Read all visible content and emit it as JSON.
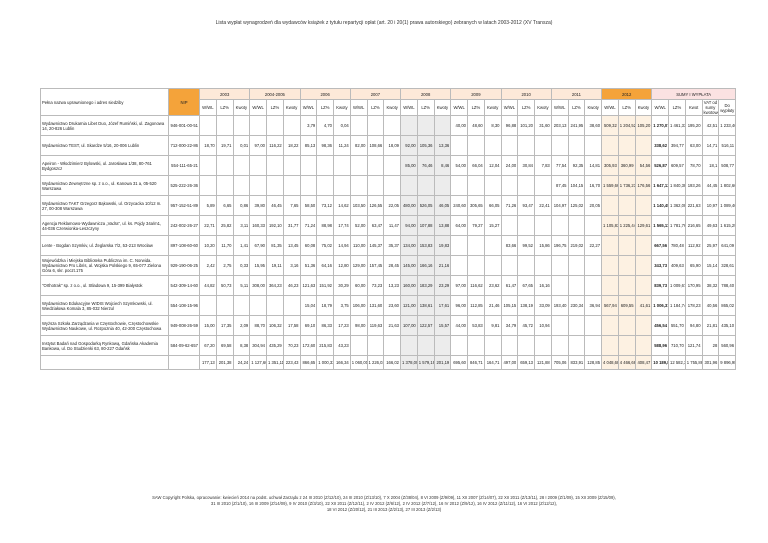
{
  "title": "Lista wypłat wynagrodzeń dla wydawców książek z tytułu repartycji opłat (art. 20 i 20(1) prawa autorskiego) zebranych w latach 2003-2012 (XV Transza)",
  "table": {
    "header": {
      "name": "Pełna nazwa uprawnionego i adres siedziby",
      "nip": "NIP",
      "groups": [
        "2003",
        "2004-2005",
        "2006",
        "2007",
        "2008",
        "2009",
        "2010",
        "2011",
        "2012"
      ],
      "sums": "SUMY I WYPŁATA",
      "sub": [
        "W/WL",
        "LZ%",
        "Kwoty"
      ],
      "sum_sub": [
        "W/WL",
        "LZ%",
        "Kwot",
        "VAT od sumy kwotowej",
        "Do wypłaty"
      ]
    },
    "rows": [
      {
        "name": "Wydawnictwo Drukarnia Libet Duo, Józef Rumiński, ul. Zagonowa 14, 20-826 Lublin",
        "nip": "946-001-00-51",
        "cells": [
          null,
          null,
          null,
          null,
          null,
          null,
          "3,79",
          "4,70",
          "0,04",
          null,
          null,
          null,
          null,
          null,
          null,
          "40,00",
          "48,60",
          "8,30",
          "96,88",
          "101,20",
          "31,60",
          "203,13",
          "241,95",
          "38,60",
          "509,32",
          "1 204,52",
          "105,20",
          "1 270,07",
          "1 461,33",
          "195,20",
          "42,51",
          "1 233,46"
        ]
      },
      {
        "name": "Wydawnictwo TEST, ul. Skardze 5/16, 20-006 Lublin",
        "nip": "712-000-22-86",
        "cells": [
          "18,70",
          "19,71",
          "0,01",
          "97,00",
          "116,22",
          "18,22",
          "85,13",
          "98,36",
          "11,24",
          "82,00",
          "108,66",
          "18,09",
          "92,00",
          "105,36",
          "13,36",
          null,
          null,
          null,
          null,
          null,
          null,
          null,
          null,
          null,
          null,
          null,
          null,
          "338,62",
          "394,77",
          "63,00",
          "14,71",
          "516,11"
        ]
      },
      {
        "name": "Apeiron - Włodzimierz Bylowski, ul. Jarosława 1/38, 80-761 Bydgoszcz",
        "nip": "554-111-65-21",
        "cells": [
          null,
          null,
          null,
          null,
          null,
          null,
          null,
          null,
          null,
          null,
          null,
          null,
          "85,00",
          "76,46",
          "8,46",
          "54,00",
          "66,04",
          "12,04",
          "24,00",
          "30,84",
          "7,83",
          "77,54",
          "92,35",
          "14,81",
          "305,93",
          "360,99",
          "54,56",
          "526,87",
          "609,57",
          "78,70",
          "18,1",
          "508,77"
        ]
      },
      {
        "name": "Wydawnictwo Zewnętrzne sp. z o.o., ul. Kanowa 31 a, 05-520 Warszawa",
        "nip": "525-222-26-36",
        "cells": [
          null,
          null,
          null,
          null,
          null,
          null,
          null,
          null,
          null,
          null,
          null,
          null,
          null,
          null,
          null,
          null,
          null,
          null,
          null,
          null,
          null,
          "87,45",
          "104,15",
          "16,70",
          "1 559,66",
          "1 736,23",
          "176,56",
          "1 647,13",
          "1 840,38",
          "193,26",
          "44,45",
          "1 802,66"
        ]
      },
      {
        "name": "Wydawnictwo TAKT Grzegorz Bąkowski, ul. Orzycacka 10/12 m. 27, 00-308 Warszawa",
        "nip": "957-152-51-89",
        "cells": [
          "5,89",
          "6,65",
          "0,86",
          "39,80",
          "46,45",
          "7,65",
          "58,50",
          "73,12",
          "14,62",
          "103,50",
          "126,55",
          "22,05",
          "480,00",
          "526,05",
          "46,05",
          "240,60",
          "305,65",
          "66,05",
          "71,26",
          "93,47",
          "22,41",
          "104,97",
          "125,02",
          "20,05",
          null,
          null,
          null,
          "1 140,45",
          "1 362,08",
          "221,63",
          "10,97",
          "1 089,46"
        ]
      },
      {
        "name": "Agencja Reklamowo-Wydawnicza „Vadra\", ul. ks. Pojdy 34a/m1, 44-036 Czerwionka-Leszczyny",
        "nip": "242-002-26-27",
        "cells": [
          "22,71",
          "25,82",
          "3,11",
          "160,33",
          "192,10",
          "31,77",
          "71,24",
          "88,98",
          "17,74",
          "52,00",
          "63,47",
          "11,47",
          "94,00",
          "107,88",
          "13,88",
          "64,00",
          "79,27",
          "15,27",
          null,
          null,
          null,
          null,
          null,
          null,
          "1 105,83",
          "1 225,44",
          "129,61",
          "1 565,11",
          "1 781,76",
          "216,65",
          "49,63",
          "1 615,29"
        ]
      },
      {
        "name": "Lente - Bogdan Szymkiv, ul. Żeglarska 7/2, 53-213 Wrocław",
        "nip": "897-108-60-60",
        "cells": [
          "10,20",
          "11,70",
          "1,41",
          "67,90",
          "81,35",
          "13,45",
          "60,08",
          "75,02",
          "14,94",
          "110,00",
          "145,37",
          "35,37",
          "134,00",
          "153,83",
          "19,83",
          null,
          null,
          null,
          "83,66",
          "99,52",
          "15,86",
          "196,75",
          "219,02",
          "22,27",
          null,
          null,
          null,
          "667,56",
          "780,48",
          "112,92",
          "25,97",
          "641,09"
        ]
      },
      {
        "name": "Wojewódzka i Miejska Biblioteka Publiczna im. C. Norwida. Wydawnictwo Pro Libris, al. Wojska Polskiego 9, 65-077 Zielona Góra 6, skr. poczt.175",
        "nip": "929-190-06-25",
        "cells": [
          "2,42",
          "2,75",
          "0,33",
          "15,95",
          "19,11",
          "3,16",
          "51,36",
          "64,16",
          "12,80",
          "129,00",
          "157,45",
          "28,45",
          "145,00",
          "166,16",
          "21,16",
          null,
          null,
          null,
          null,
          null,
          null,
          null,
          null,
          null,
          null,
          null,
          null,
          "343,73",
          "409,63",
          "65,90",
          "15,14",
          "328,61"
        ]
      },
      {
        "name": "\"Orthotrak\" sp. z o.o., ul. Stładowa 9, 15-399 Białystok",
        "nip": "542-309-14-60",
        "cells": [
          "44,82",
          "50,73",
          "5,11",
          "308,00",
          "364,23",
          "46,23",
          "121,63",
          "151,92",
          "30,29",
          "60,00",
          "73,23",
          "13,23",
          "160,00",
          "183,29",
          "23,29",
          "97,00",
          "116,62",
          "23,62",
          "61,47",
          "67,65",
          "16,16",
          null,
          null,
          null,
          null,
          null,
          null,
          "839,73",
          "1 009,67",
          "170,95",
          "38,32",
          "788,40"
        ]
      },
      {
        "name": "Wydawnictwo Edukacyjne WIDIS Wojciech Szymkowski, ul. Wiedziałowa Komala 3, 85-032 Nierzul",
        "nip": "554-108-15-96",
        "cells": [
          null,
          null,
          null,
          null,
          null,
          null,
          "15,04",
          "18,79",
          "3,75",
          "106,00",
          "131,60",
          "23,60",
          "121,00",
          "138,61",
          "17,61",
          "96,00",
          "112,85",
          "21,46",
          "105,15",
          "138,19",
          "33,09",
          "193,40",
          "230,34",
          "36,94",
          "567,94",
          "609,55",
          "41,61",
          "1 006,31",
          "1 184,74",
          "178,23",
          "40,56",
          "865,02"
        ]
      },
      {
        "name": "Wyższa Szkoła Zarządzania w Częstochowie, Częstochowskie Wydawnictwo Naukowe, ul. Rozpoznia 40, 42-200 Częstochowa",
        "nip": "949-008-26-59",
        "cells": [
          "15,00",
          "17,35",
          "2,09",
          "88,70",
          "106,32",
          "17,58",
          "69,10",
          "86,33",
          "17,23",
          "98,00",
          "119,63",
          "21,63",
          "107,00",
          "122,57",
          "15,57",
          "44,00",
          "53,83",
          "9,81",
          "34,79",
          "45,72",
          "10,94",
          null,
          null,
          null,
          null,
          null,
          null,
          "456,54",
          "551,70",
          "94,80",
          "21,81",
          "435,10"
        ]
      },
      {
        "name": "Instytut Badań nad Gospodarką Rynkową, Gdańska Akademia Bankowa, ul. Do Studzienki 63, 80-227 Gdańsk",
        "nip": "584-09-62-657",
        "cells": [
          "67,20",
          "69,58",
          "8,38",
          "304,94",
          "435,29",
          "70,23",
          "172,60",
          "215,83",
          "43,23",
          null,
          null,
          null,
          null,
          null,
          null,
          null,
          null,
          null,
          null,
          null,
          null,
          null,
          null,
          null,
          null,
          null,
          null,
          "588,96",
          "710,70",
          "121,74",
          "28",
          "560,96"
        ]
      }
    ],
    "totals": [
      "177,13",
      "201,38",
      "24,24",
      "1 127,60",
      "1 351,11",
      "223,43",
      "866,65",
      "1 000,33",
      "166,34",
      "1 060,00",
      "1 226,02",
      "166,02",
      "1 378,00",
      "1 579,19",
      "201,19",
      "695,60",
      "846,71",
      "164,71",
      "497,00",
      "659,13",
      "121,88",
      "705,06",
      "833,91",
      "128,85",
      "4 048,68",
      "4 466,68",
      "408,47",
      "10 189,89",
      "12 582,36",
      "1 755,86",
      "301,96",
      "9 896,98"
    ]
  },
  "footer": [
    "SAW Copyright Polska, opracowanie: kwiecień 2014 na podst. uchwał Zarządu z 24 III 2010 (Z/12/10), 24 III 2010 (Z/13/10), 7 X 2004 (Z/38/04), 8 VI 2009 (Z/9/09), 11 XII 2007 (Z/14/07), 22 XII 2011 (Z/13/11), 28 I 2009 (Z/1/09), 15 XII 2009 (Z/15/09),",
    "31 III 2010 (Z/1/10), 16 III 2009 (Z/14/09), 9 IV 2010 (Z/3/10), 22 XII 2011 (Z/12/11), 2 IV 2012 (Z/6/12), 2 IV 2012 (Z/7/12), 16 IV 2012 (Z/9/12), 16 IV 2012 (Z/11/12), 16 VI 2012 (Z/12/12),",
    "18 VI 2012 (Z/20/12), 21 III 2013 (Z/2/13), 27 III 2013 (Z/2/13)"
  ]
}
